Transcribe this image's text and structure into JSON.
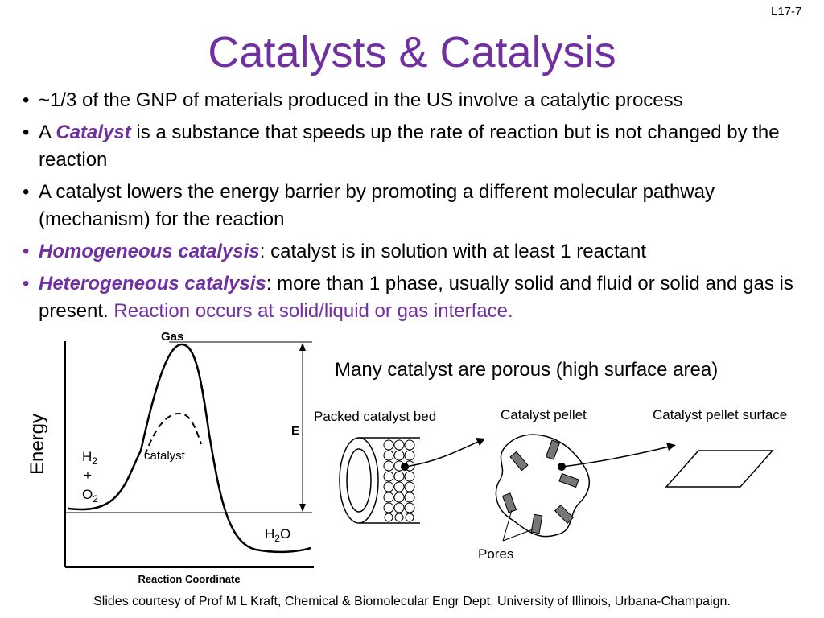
{
  "slide_number": "L17-7",
  "title": "Catalysts & Catalysis",
  "bullets": {
    "b1": "~1/3 of the GNP of materials produced in the US involve a catalytic process",
    "b2_pre": "A ",
    "b2_term": "Catalyst",
    "b2_post": " is a substance that speeds up the rate of reaction but is not changed by the reaction",
    "b3": "A catalyst lowers the energy barrier by promoting a different molecular pathway (mechanism) for the reaction",
    "b4_term": "Homogeneous catalysis",
    "b4_post": ": catalyst is in solution with at least 1 reactant",
    "b5_term": "Heterogeneous catalysis",
    "b5_post": ": more than 1 phase, usually solid and fluid or solid and gas is present.  ",
    "b5_highlight": "Reaction occurs at solid/liquid or gas interface."
  },
  "energy_diagram": {
    "y_label": "Energy",
    "x_label": "Reaction Coordinate",
    "peak_label": "Gas",
    "catalyst_label": "catalyst",
    "energy_marker": "E",
    "reactant_h": "H",
    "reactant_h_sub": "2",
    "plus": "+",
    "reactant_o": "O",
    "reactant_o_sub": "2",
    "product_h": "H",
    "product_h_sub": "2",
    "product_o": "O"
  },
  "porous_note": "Many catalyst are porous (high surface area)",
  "catalyst_diagram": {
    "bed_label": "Packed catalyst bed",
    "pellet_label": "Catalyst pellet",
    "surface_label": "Catalyst pellet surface",
    "pores_label": "Pores"
  },
  "footer": "Slides courtesy of Prof M L Kraft, Chemical & Biomolecular Engr Dept, University of Illinois, Urbana-Champaign.",
  "colors": {
    "accent": "#7030a0"
  }
}
